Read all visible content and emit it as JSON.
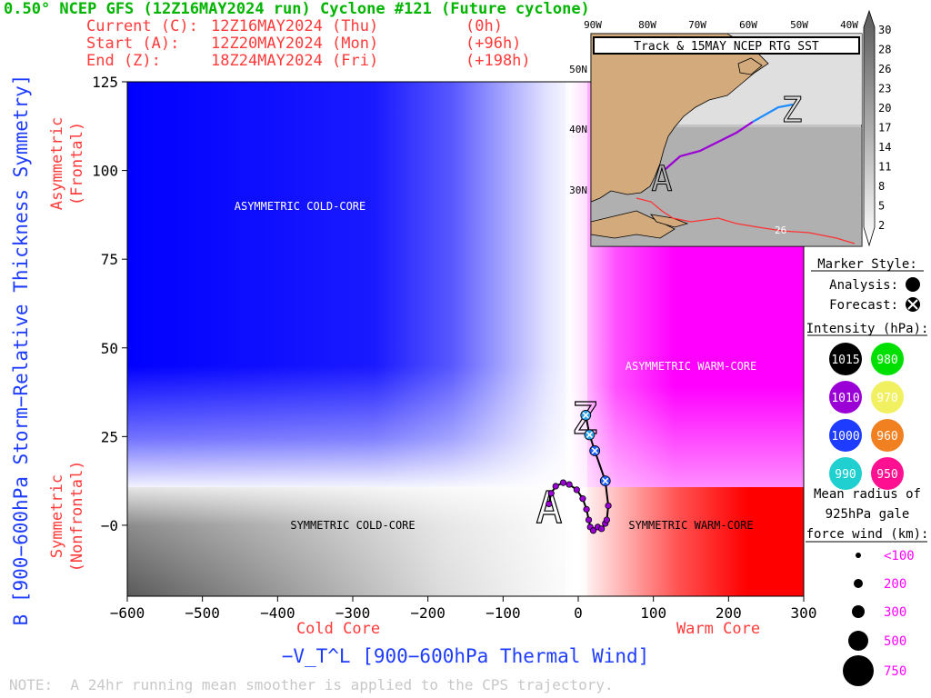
{
  "header": {
    "title": "0.50° NCEP GFS (12Z16MAY2024 run) Cyclone #121 (Future cyclone)",
    "current_label": "Current (C):",
    "current_time": "12Z16MAY2024 (Thu)",
    "current_offset": "(0h)",
    "start_label": "Start (A):",
    "start_time": "12Z20MAY2024 (Mon)",
    "start_offset": "(+96h)",
    "end_label": "End (Z):",
    "end_time": "18Z24MAY2024 (Fri)",
    "end_offset": "(+198h)"
  },
  "note": "NOTE:  A 24hr running mean smoother is applied to the CPS trajectory.",
  "colors": {
    "title_green": "#00b400",
    "header_red": "#ff3a3a",
    "axis_blue": "#1e3cff",
    "cold_blue": "#0000ff",
    "warm_magenta": "#ff00ff",
    "warm_red": "#ff0000"
  },
  "chart_data": {
    "type": "scatter",
    "title": "",
    "xlabel": "−V_T^L [900−600hPa Thermal Wind]",
    "ylabel": "B [900−600hPa Storm−Relative Thickness Symmetry]",
    "xlim": [
      -600,
      300
    ],
    "ylim": [
      -20,
      125
    ],
    "x_ticks": [
      "−600",
      "−500",
      "−400",
      "−300",
      "−200",
      "−100",
      "0",
      "100",
      "200",
      "300"
    ],
    "y_ticks": [
      "−0",
      "25",
      "50",
      "75",
      "100",
      "125"
    ],
    "y_tick_values": [
      0,
      25,
      50,
      75,
      100,
      125
    ],
    "x_tick_values": [
      -600,
      -500,
      -400,
      -300,
      -200,
      -100,
      0,
      100,
      200,
      300
    ],
    "x_side_labels": {
      "cold": "Cold Core",
      "warm": "Warm Core"
    },
    "y_side_labels": {
      "upper_1": "Asymmetric",
      "upper_2": "(Frontal)",
      "lower_1": "Symmetric",
      "lower_2": "(Nonfrontal)"
    },
    "quadrant_labels": {
      "acc": "ASYMMETRIC COLD-CORE",
      "awc": "ASYMMETRIC WARM-CORE",
      "scc": "SYMMETRIC COLD-CORE",
      "swc": "SYMMETRIC WARM-CORE"
    },
    "start_letter": "A",
    "end_letter": "Z",
    "track": [
      {
        "x": -39,
        "y": 6,
        "kind": "analysis",
        "color": "#9a00d6"
      },
      {
        "x": -36,
        "y": 9,
        "kind": "analysis",
        "color": "#9a00d6"
      },
      {
        "x": -30,
        "y": 11,
        "kind": "analysis",
        "color": "#9a00d6"
      },
      {
        "x": -20,
        "y": 12,
        "kind": "analysis",
        "color": "#9a00d6"
      },
      {
        "x": -12,
        "y": 11.5,
        "kind": "analysis",
        "color": "#9a00d6"
      },
      {
        "x": -2,
        "y": 10,
        "kind": "analysis",
        "color": "#9a00d6"
      },
      {
        "x": 6,
        "y": 7.5,
        "kind": "analysis",
        "color": "#9a00d6"
      },
      {
        "x": 11,
        "y": 4.5,
        "kind": "analysis",
        "color": "#9a00d6"
      },
      {
        "x": 14,
        "y": 1.5,
        "kind": "analysis",
        "color": "#9a00d6"
      },
      {
        "x": 16,
        "y": -0.5,
        "kind": "analysis",
        "color": "#9a00d6"
      },
      {
        "x": 20,
        "y": -1.5,
        "kind": "analysis",
        "color": "#9a00d6"
      },
      {
        "x": 26,
        "y": -0.5,
        "kind": "analysis",
        "color": "#9a00d6"
      },
      {
        "x": 31,
        "y": -1,
        "kind": "analysis",
        "color": "#9a00d6"
      },
      {
        "x": 36,
        "y": 0.5,
        "kind": "forecast",
        "color": "#9a00d6"
      },
      {
        "x": 38,
        "y": 1.5,
        "kind": "forecast",
        "color": "#9a00d6"
      },
      {
        "x": 40,
        "y": 5.5,
        "kind": "forecast",
        "color": "#9a00d6"
      },
      {
        "x": 36,
        "y": 12.5,
        "kind": "forecast",
        "color": "#1e60ff"
      },
      {
        "x": 22,
        "y": 21,
        "kind": "forecast",
        "color": "#1e60ff"
      },
      {
        "x": 15,
        "y": 25.5,
        "kind": "forecast",
        "color": "#2aa0e8"
      },
      {
        "x": 10,
        "y": 31,
        "kind": "forecast",
        "color": "#2aa0e8"
      }
    ]
  },
  "inset_map": {
    "title": "Track & 15MAY NCEP RTG SST",
    "lon_labels": [
      "90W",
      "80W",
      "70W",
      "60W",
      "50W",
      "40W"
    ],
    "lat_labels": [
      "50N",
      "40N",
      "30N"
    ],
    "contour_label": "26",
    "start_letter": "A",
    "end_letter": "Z",
    "colorbar_labels": [
      "30",
      "28",
      "26",
      "23",
      "20",
      "17",
      "14",
      "11",
      "8",
      "5",
      "2"
    ]
  },
  "legend": {
    "marker_style_title": "Marker Style:",
    "analysis_label": "Analysis:",
    "forecast_label": "Forecast:",
    "intensity_title": "Intensity (hPa):",
    "intensity_items": [
      {
        "label": "1015",
        "color": "#000000",
        "text_color": "#ffffff"
      },
      {
        "label": "980",
        "color": "#00e000",
        "text_color": "#ffffff"
      },
      {
        "label": "1010",
        "color": "#9a00d6",
        "text_color": "#ffffff"
      },
      {
        "label": "970",
        "color": "#f0f060",
        "text_color": "#ffffff"
      },
      {
        "label": "1000",
        "color": "#1e3cff",
        "text_color": "#ffffff"
      },
      {
        "label": "960",
        "color": "#f08020",
        "text_color": "#ffffff"
      },
      {
        "label": "990",
        "color": "#20d0d0",
        "text_color": "#ffffff"
      },
      {
        "label": "950",
        "color": "#ff1090",
        "text_color": "#ffffff"
      }
    ],
    "radius_title_1": "Mean radius of",
    "radius_title_2": "925hPa gale",
    "radius_title_3": "force wind (km):",
    "radius_items": [
      "<100",
      "200",
      "300",
      "500",
      "750"
    ]
  }
}
